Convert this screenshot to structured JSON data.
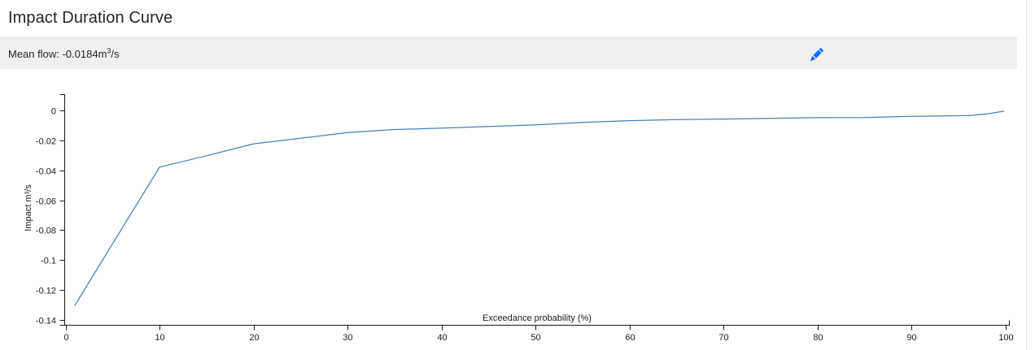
{
  "header": {
    "title": "Impact Duration Curve"
  },
  "toolbar": {
    "mean_flow_prefix": "Mean flow: -0.0184m",
    "mean_flow_sup": "3",
    "mean_flow_suffix": "/s",
    "edit_icon_color": "#0d6efd"
  },
  "chart_data": {
    "type": "line",
    "title": "Impact Duration Curve",
    "xlabel": "Exceedance probability (%)",
    "ylabel": "Impact m³/s",
    "xlim": [
      0,
      100
    ],
    "ylim": [
      -0.145,
      0.013
    ],
    "xticks": [
      0,
      10,
      20,
      30,
      40,
      50,
      60,
      70,
      80,
      90,
      100
    ],
    "yticks": [
      0,
      -0.02,
      -0.04,
      -0.06,
      -0.08,
      -0.1,
      -0.12,
      -0.14
    ],
    "ytick_labels": [
      "0",
      "-0.02",
      "-0.04",
      "-0.06",
      "-0.08",
      "-0.1",
      "-0.12",
      "-0.14"
    ],
    "grid": false,
    "legend": false,
    "line_color": "#4682b4",
    "axis_color": "#1a1a1a",
    "series": [
      {
        "name": "Impact duration curve",
        "points": [
          [
            1,
            -0.1303
          ],
          [
            10,
            -0.0378
          ],
          [
            15,
            -0.0302
          ],
          [
            20,
            -0.0222
          ],
          [
            25,
            -0.0185
          ],
          [
            30,
            -0.0147
          ],
          [
            35,
            -0.0126
          ],
          [
            40,
            -0.0117
          ],
          [
            45,
            -0.0106
          ],
          [
            50,
            -0.0095
          ],
          [
            55,
            -0.0079
          ],
          [
            60,
            -0.0067
          ],
          [
            65,
            -0.006
          ],
          [
            70,
            -0.0056
          ],
          [
            75,
            -0.0051
          ],
          [
            80,
            -0.0047
          ],
          [
            85,
            -0.0046
          ],
          [
            90,
            -0.0038
          ],
          [
            95,
            -0.0034
          ],
          [
            96,
            -0.0033
          ],
          [
            97,
            -0.0028
          ],
          [
            98,
            -0.0021
          ],
          [
            99,
            -0.0012
          ],
          [
            99.8,
            -0.0003
          ]
        ]
      }
    ]
  }
}
